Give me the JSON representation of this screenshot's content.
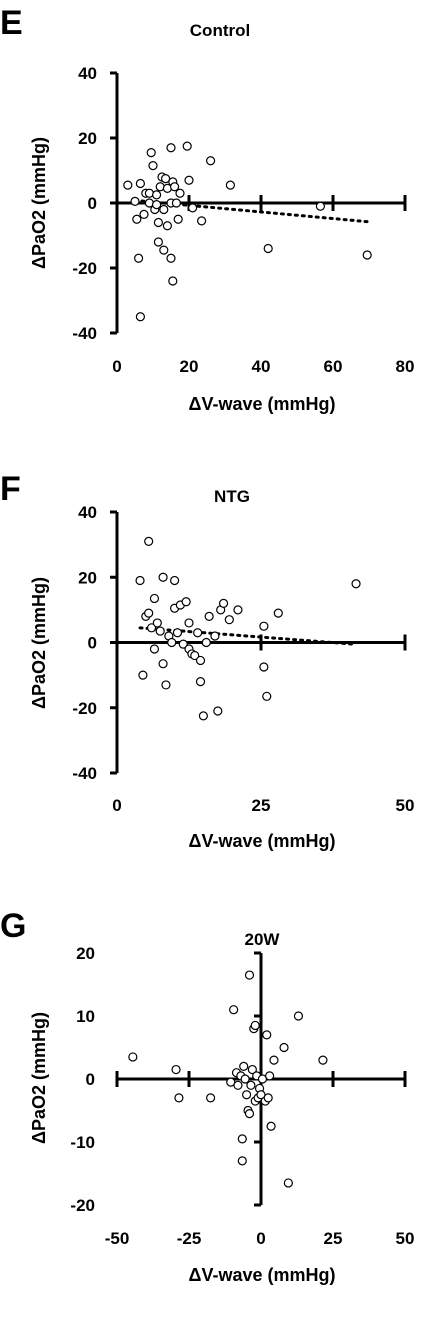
{
  "chart_data": [
    {
      "panel": "E",
      "type": "scatter",
      "title": "Control",
      "xlabel": "ΔV-wave (mmHg)",
      "ylabel": "ΔPaO2 (mmHg)",
      "xlim": [
        0,
        80
      ],
      "ylim": [
        -40,
        40
      ],
      "xticks": [
        0,
        20,
        40,
        60,
        80
      ],
      "yticks": [
        40,
        20,
        0,
        -20,
        -40
      ],
      "grid": false,
      "axes_style": "cross",
      "trendline": {
        "style": "dotted",
        "x": [
          5,
          70
        ],
        "y": [
          0.8,
          -5.8
        ]
      },
      "points": [
        {
          "x": 3,
          "y": 5.5
        },
        {
          "x": 5,
          "y": 0.5
        },
        {
          "x": 5.5,
          "y": -5
        },
        {
          "x": 6,
          "y": -17
        },
        {
          "x": 6.5,
          "y": 6
        },
        {
          "x": 6.5,
          "y": -35
        },
        {
          "x": 7.5,
          "y": -3.5
        },
        {
          "x": 8,
          "y": 3
        },
        {
          "x": 9,
          "y": 3
        },
        {
          "x": 9,
          "y": 0
        },
        {
          "x": 9.5,
          "y": 15.5
        },
        {
          "x": 10,
          "y": 11.5
        },
        {
          "x": 10.5,
          "y": -2
        },
        {
          "x": 11,
          "y": 2.5
        },
        {
          "x": 11,
          "y": -0.5
        },
        {
          "x": 11.5,
          "y": -6
        },
        {
          "x": 11.5,
          "y": -12
        },
        {
          "x": 12,
          "y": 5
        },
        {
          "x": 12.5,
          "y": 8
        },
        {
          "x": 13,
          "y": -2
        },
        {
          "x": 13,
          "y": -14.5
        },
        {
          "x": 13.5,
          "y": 7.5
        },
        {
          "x": 14,
          "y": 4.5
        },
        {
          "x": 14,
          "y": -7
        },
        {
          "x": 15,
          "y": 17
        },
        {
          "x": 15,
          "y": 0
        },
        {
          "x": 15,
          "y": -17
        },
        {
          "x": 15.5,
          "y": 6.5
        },
        {
          "x": 15.5,
          "y": -24
        },
        {
          "x": 16,
          "y": 5
        },
        {
          "x": 16.5,
          "y": 0
        },
        {
          "x": 17,
          "y": -5
        },
        {
          "x": 17.5,
          "y": 3
        },
        {
          "x": 19.5,
          "y": 17.5
        },
        {
          "x": 20,
          "y": 7
        },
        {
          "x": 21,
          "y": -1.5
        },
        {
          "x": 23.5,
          "y": -5.5
        },
        {
          "x": 26,
          "y": 13
        },
        {
          "x": 31.5,
          "y": 5.5
        },
        {
          "x": 42,
          "y": -14
        },
        {
          "x": 56.5,
          "y": -1
        },
        {
          "x": 69.5,
          "y": -16
        }
      ]
    },
    {
      "panel": "F",
      "type": "scatter",
      "title": "NTG",
      "xlabel": "ΔV-wave (mmHg)",
      "ylabel": "ΔPaO2 (mmHg)",
      "xlim": [
        0,
        50
      ],
      "ylim": [
        -40,
        40
      ],
      "xticks": [
        0,
        25,
        50
      ],
      "yticks": [
        40,
        20,
        0,
        -20,
        -40
      ],
      "grid": false,
      "axes_style": "cross",
      "trendline": {
        "style": "dotted",
        "x": [
          4,
          41
        ],
        "y": [
          4.5,
          -0.5
        ]
      },
      "points": [
        {
          "x": 4,
          "y": 19
        },
        {
          "x": 4.5,
          "y": -10
        },
        {
          "x": 5,
          "y": 8
        },
        {
          "x": 5.5,
          "y": 9
        },
        {
          "x": 5.5,
          "y": 31
        },
        {
          "x": 6,
          "y": 4.5
        },
        {
          "x": 6.5,
          "y": 13.5
        },
        {
          "x": 6.5,
          "y": -2
        },
        {
          "x": 7,
          "y": 6
        },
        {
          "x": 7.5,
          "y": 3.5
        },
        {
          "x": 8,
          "y": 20
        },
        {
          "x": 8,
          "y": -6.5
        },
        {
          "x": 8.5,
          "y": -13
        },
        {
          "x": 9,
          "y": 2
        },
        {
          "x": 9.5,
          "y": 0
        },
        {
          "x": 10,
          "y": 10.5
        },
        {
          "x": 10,
          "y": 19
        },
        {
          "x": 10.5,
          "y": 3
        },
        {
          "x": 11,
          "y": 11.5
        },
        {
          "x": 11.5,
          "y": -0.5
        },
        {
          "x": 12,
          "y": 12.5
        },
        {
          "x": 12.5,
          "y": -2
        },
        {
          "x": 12.5,
          "y": 6
        },
        {
          "x": 13,
          "y": -3.5
        },
        {
          "x": 13.5,
          "y": -4
        },
        {
          "x": 14,
          "y": 3
        },
        {
          "x": 14.5,
          "y": -12
        },
        {
          "x": 14.5,
          "y": -5.5
        },
        {
          "x": 15,
          "y": -22.5
        },
        {
          "x": 15.5,
          "y": 0
        },
        {
          "x": 16,
          "y": 8
        },
        {
          "x": 17,
          "y": 2
        },
        {
          "x": 17.5,
          "y": -21
        },
        {
          "x": 18,
          "y": 10
        },
        {
          "x": 18.5,
          "y": 12
        },
        {
          "x": 19.5,
          "y": 7
        },
        {
          "x": 21,
          "y": 10
        },
        {
          "x": 25.5,
          "y": -7.5
        },
        {
          "x": 25.5,
          "y": 5
        },
        {
          "x": 26,
          "y": -16.5
        },
        {
          "x": 28,
          "y": 9
        },
        {
          "x": 41.5,
          "y": 18
        }
      ]
    },
    {
      "panel": "G",
      "type": "scatter",
      "title": "20W",
      "xlabel": "ΔV-wave (mmHg)",
      "ylabel": "ΔPaO2 (mmHg)",
      "xlim": [
        -50,
        50
      ],
      "ylim": [
        -20,
        20
      ],
      "xticks": [
        -50,
        -25,
        0,
        25,
        50
      ],
      "yticks": [
        20,
        10,
        0,
        -10,
        -20
      ],
      "grid": false,
      "axes_style": "cross",
      "points": [
        {
          "x": -44.5,
          "y": 3.5
        },
        {
          "x": -29.5,
          "y": 1.5
        },
        {
          "x": -28.5,
          "y": -3
        },
        {
          "x": -17.5,
          "y": -3
        },
        {
          "x": -10.5,
          "y": -0.5
        },
        {
          "x": -9.5,
          "y": 11
        },
        {
          "x": -8.5,
          "y": 1
        },
        {
          "x": -8,
          "y": -1
        },
        {
          "x": -7,
          "y": 0.5
        },
        {
          "x": -6.5,
          "y": -9.5
        },
        {
          "x": -6.5,
          "y": -13
        },
        {
          "x": -6,
          "y": 2
        },
        {
          "x": -5.5,
          "y": 0
        },
        {
          "x": -5,
          "y": -2.5
        },
        {
          "x": -4.5,
          "y": -5
        },
        {
          "x": -4,
          "y": -5.5
        },
        {
          "x": -4,
          "y": 16.5
        },
        {
          "x": -3.5,
          "y": -1
        },
        {
          "x": -3,
          "y": 1.5
        },
        {
          "x": -2.5,
          "y": 8
        },
        {
          "x": -2,
          "y": 8.5
        },
        {
          "x": -2,
          "y": -3.5
        },
        {
          "x": -1.5,
          "y": 0.5
        },
        {
          "x": -1,
          "y": -3
        },
        {
          "x": -0.5,
          "y": -1.5
        },
        {
          "x": 0,
          "y": -2.5
        },
        {
          "x": 0.5,
          "y": 0
        },
        {
          "x": 1.5,
          "y": -3.5
        },
        {
          "x": 2,
          "y": 7
        },
        {
          "x": 2.5,
          "y": -3
        },
        {
          "x": 3,
          "y": 0.5
        },
        {
          "x": 3.5,
          "y": -7.5
        },
        {
          "x": 4.5,
          "y": 3
        },
        {
          "x": 8,
          "y": 5
        },
        {
          "x": 9.5,
          "y": -16.5
        },
        {
          "x": 13,
          "y": 10
        },
        {
          "x": 21.5,
          "y": 3
        }
      ]
    }
  ],
  "panels": [
    {
      "letter": "E",
      "title": "Control",
      "xlabel": "ΔV-wave (mmHg)",
      "ylabel": "ΔPaO2 (mmHg)"
    },
    {
      "letter": "F",
      "title": "NTG",
      "xlabel": "ΔV-wave (mmHg)",
      "ylabel": "ΔPaO2 (mmHg)"
    },
    {
      "letter": "G",
      "title": "20W",
      "xlabel": "ΔV-wave (mmHg)",
      "ylabel": "ΔPaO2 (mmHg)"
    }
  ]
}
